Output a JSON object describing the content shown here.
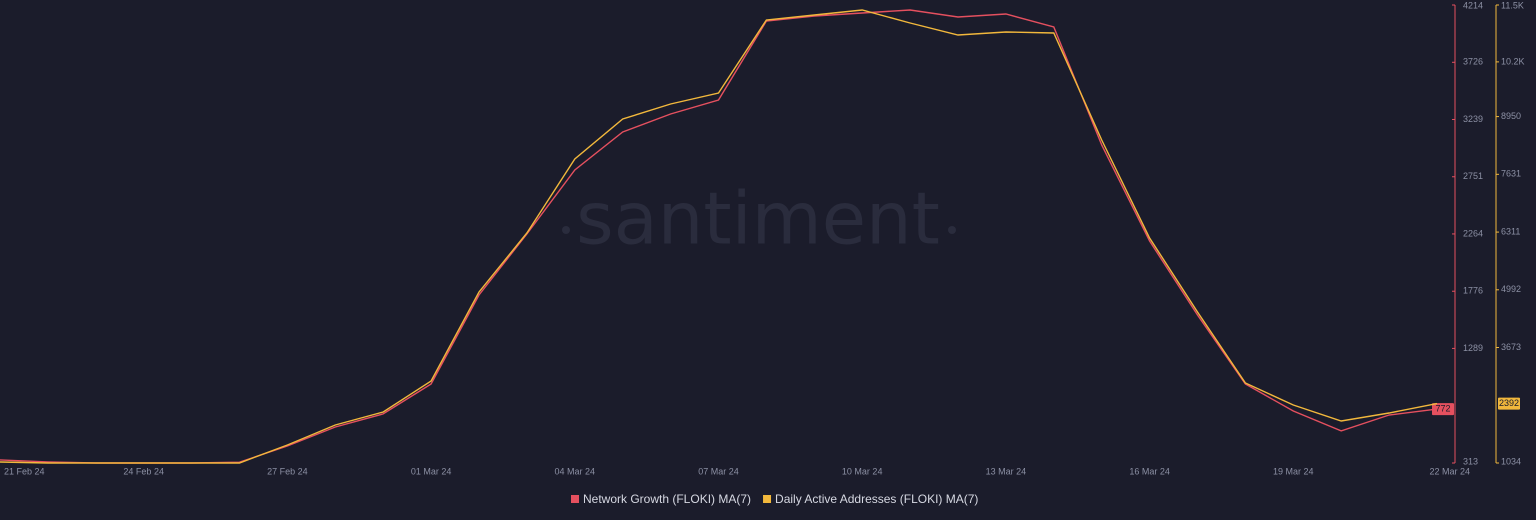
{
  "chart_data": {
    "type": "line",
    "watermark": "santiment",
    "categories": [
      "21 Feb 24",
      null,
      null,
      "24 Feb 24",
      null,
      null,
      "27 Feb 24",
      null,
      null,
      "01 Mar 24",
      null,
      null,
      "04 Mar 24",
      null,
      null,
      "07 Mar 24",
      null,
      null,
      "10 Mar 24",
      null,
      null,
      "13 Mar 24",
      null,
      null,
      "16 Mar 24",
      null,
      null,
      "19 Mar 24",
      null,
      null,
      "22 Mar 24"
    ],
    "series": [
      {
        "name": "Network Growth (FLOKI) MA(7)",
        "color": "#e5505f",
        "axis": "y",
        "values": [
          339,
          322,
          313,
          313,
          313,
          320,
          458,
          620,
          731,
          986,
          1744,
          2264,
          2809,
          3132,
          3286,
          3405,
          4078,
          4120,
          4146,
          4171,
          4112,
          4137,
          4027,
          3022,
          2204,
          1574,
          986,
          756,
          586,
          722,
          772
        ]
      },
      {
        "name": "Daily Active Addresses (FLOKI) MA(7)",
        "color": "#f2b83c",
        "axis": "y2",
        "values": [
          1057,
          1034,
          1034,
          1034,
          1034,
          1034,
          1445,
          1902,
          2199,
          2908,
          4942,
          6290,
          7981,
          8895,
          9238,
          9489,
          11158,
          11272,
          11386,
          11089,
          10815,
          10883,
          10860,
          8415,
          6176,
          4485,
          2862,
          2359,
          1994,
          2177,
          2392
        ]
      }
    ],
    "ylim": [
      313,
      4214
    ],
    "yticks": [
      313,
      1289,
      1776,
      2264,
      2751,
      3239,
      3726,
      4214
    ],
    "y2lim": [
      1034,
      11500
    ],
    "y2ticks": [
      1034,
      3673,
      4992,
      6311,
      7631,
      8950,
      {
        "value": 10200,
        "label": "10.2K"
      },
      {
        "value": 11500,
        "label": "11.5K"
      }
    ],
    "legend": "bottom"
  }
}
